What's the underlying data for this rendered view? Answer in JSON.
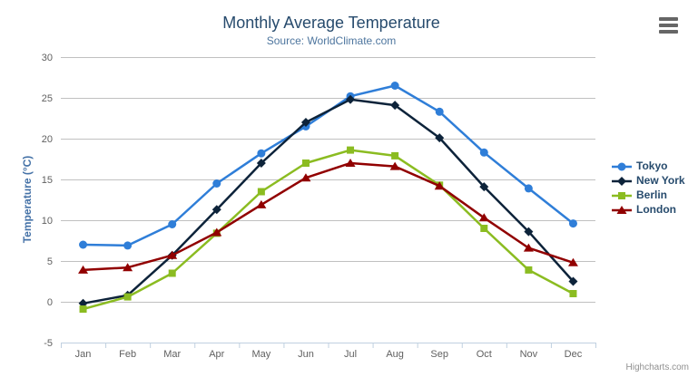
{
  "page": {
    "credit": "Highcharts.com"
  },
  "chart_data": {
    "type": "line",
    "title": "Monthly Average Temperature",
    "subtitle": "Source: WorldClimate.com",
    "xlabel": "",
    "ylabel": "Temperature (°C)",
    "categories": [
      "Jan",
      "Feb",
      "Mar",
      "Apr",
      "May",
      "Jun",
      "Jul",
      "Aug",
      "Sep",
      "Oct",
      "Nov",
      "Dec"
    ],
    "ylim": [
      -5,
      30
    ],
    "ytick_interval": 5,
    "grid": true,
    "legend_position": "right",
    "colors": {
      "grid": "#c0c0c0",
      "axis_line": "#c0d0e0",
      "tick": "#c0d0e0",
      "axis_label": "#606060",
      "title": "#274b6d",
      "subtitle": "#4d759e",
      "yaxis_title": "#4572a7",
      "legend_text": "#274b6d",
      "credit_text": "#909090"
    },
    "series": [
      {
        "name": "Tokyo",
        "color": "#2f7ed8",
        "marker": "circle",
        "values": [
          7.0,
          6.9,
          9.5,
          14.5,
          18.2,
          21.5,
          25.2,
          26.5,
          23.3,
          18.3,
          13.9,
          9.6
        ]
      },
      {
        "name": "New York",
        "color": "#0d233a",
        "marker": "diamond",
        "values": [
          -0.2,
          0.8,
          5.7,
          11.3,
          17.0,
          22.0,
          24.8,
          24.1,
          20.1,
          14.1,
          8.6,
          2.5
        ]
      },
      {
        "name": "Berlin",
        "color": "#8bbc21",
        "marker": "square",
        "values": [
          -0.9,
          0.6,
          3.5,
          8.4,
          13.5,
          17.0,
          18.6,
          17.9,
          14.3,
          9.0,
          3.9,
          1.0
        ]
      },
      {
        "name": "London",
        "color": "#910000",
        "marker": "triangle",
        "values": [
          3.9,
          4.2,
          5.7,
          8.5,
          11.9,
          15.2,
          17.0,
          16.6,
          14.2,
          10.3,
          6.6,
          4.8
        ]
      }
    ]
  }
}
